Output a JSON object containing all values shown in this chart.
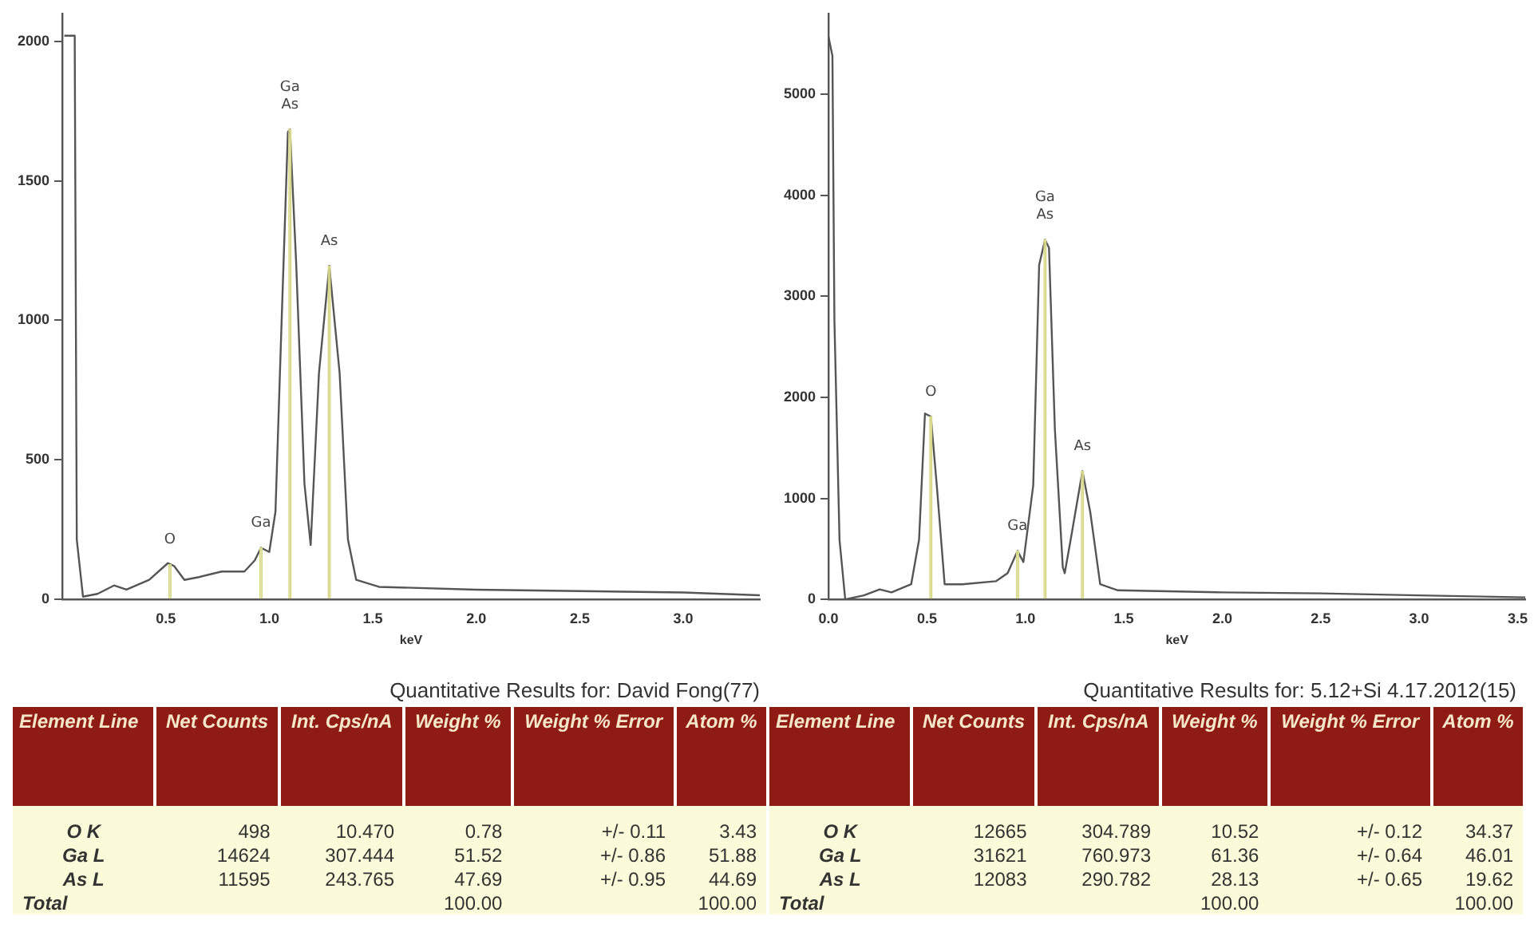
{
  "chart_data": [
    {
      "type": "line",
      "xlabel": "keV",
      "xlim": [
        0,
        3.37
      ],
      "ylim": [
        0,
        2100
      ],
      "xticks": [
        {
          "value": 0.5,
          "label": "0.5"
        },
        {
          "value": 1,
          "label": "1.0"
        },
        {
          "value": 1.5,
          "label": "1.5"
        },
        {
          "value": 2,
          "label": "2.0"
        },
        {
          "value": 2.5,
          "label": "2.5"
        },
        {
          "value": 3,
          "label": "3.0"
        }
      ],
      "yticks": [
        0,
        500,
        1000,
        1500,
        2000
      ],
      "grid": false,
      "legend": false,
      "marker": "none",
      "line_style": "solid",
      "series": [
        {
          "color": "#555555",
          "x": [
            0.01,
            0.06,
            0.07,
            0.1,
            0.17,
            0.25,
            0.31,
            0.42,
            0.51,
            0.54,
            0.59,
            0.66,
            0.77,
            0.88,
            0.93,
            0.96,
            1.0,
            1.03,
            1.06,
            1.09,
            1.1,
            1.13,
            1.17,
            1.2,
            1.24,
            1.29,
            1.34,
            1.38,
            1.42,
            1.53,
            2.0,
            2.5,
            3.0,
            3.37
          ],
          "values": [
            2020,
            2020,
            215,
            10,
            20,
            50,
            35,
            70,
            130,
            120,
            70,
            80,
            100,
            100,
            140,
            185,
            170,
            315,
            1005,
            1675,
            1685,
            1205,
            415,
            195,
            810,
            1195,
            810,
            215,
            70,
            45,
            35,
            30,
            25,
            15
          ]
        },
        {
          "type": "bar",
          "color": "#d9d98c",
          "x": [
            0.52,
            0.96,
            1.1,
            1.29
          ],
          "values": [
            125,
            185,
            1685,
            1195
          ]
        }
      ],
      "annotations": [
        {
          "text": "O",
          "x": 0.52,
          "y": 125
        },
        {
          "text": "Ga",
          "x": 0.96,
          "y": 185
        },
        {
          "text": "Ga\nAs",
          "x": 1.1,
          "y": 1685
        },
        {
          "text": "As",
          "x": 1.29,
          "y": 1195
        }
      ]
    },
    {
      "type": "line",
      "xlabel": "keV",
      "xlim": [
        0,
        3.54
      ],
      "ylim": [
        0,
        5800
      ],
      "xticks": [
        {
          "value": 0,
          "label": "0.0"
        },
        {
          "value": 0.5,
          "label": "0.5"
        },
        {
          "value": 1,
          "label": "1.0"
        },
        {
          "value": 1.5,
          "label": "1.5"
        },
        {
          "value": 2,
          "label": "2.0"
        },
        {
          "value": 2.5,
          "label": "2.5"
        },
        {
          "value": 3,
          "label": "3.0"
        },
        {
          "value": 3.5,
          "label": "3.5"
        }
      ],
      "yticks": [
        0,
        1000,
        2000,
        3000,
        4000,
        5000
      ],
      "grid": false,
      "legend": false,
      "marker": "none",
      "line_style": "solid",
      "series": [
        {
          "color": "#555555",
          "x": [
            0,
            0.02,
            0.03,
            0.056,
            0.085,
            0.18,
            0.26,
            0.32,
            0.42,
            0.46,
            0.49,
            0.52,
            0.55,
            0.59,
            0.68,
            0.85,
            0.91,
            0.96,
            0.99,
            1.04,
            1.07,
            1.1,
            1.12,
            1.15,
            1.19,
            1.2,
            1.23,
            1.29,
            1.33,
            1.38,
            1.47,
            2.0,
            2.5,
            3.0,
            3.54
          ],
          "values": [
            5570,
            5380,
            2770,
            590,
            0,
            40,
            100,
            70,
            150,
            590,
            1840,
            1810,
            1130,
            150,
            150,
            180,
            260,
            480,
            370,
            1130,
            3310,
            3560,
            3480,
            1680,
            320,
            260,
            590,
            1270,
            860,
            150,
            90,
            70,
            60,
            40,
            20
          ]
        },
        {
          "type": "bar",
          "color": "#d9d98c",
          "x": [
            0.52,
            0.96,
            1.1,
            1.29
          ],
          "values": [
            1810,
            480,
            3560,
            1270
          ]
        }
      ],
      "annotations": [
        {
          "text": "O",
          "x": 0.52,
          "y": 1810
        },
        {
          "text": "Ga",
          "x": 0.96,
          "y": 480
        },
        {
          "text": "Ga\nAs",
          "x": 1.1,
          "y": 3560
        },
        {
          "text": "As",
          "x": 1.29,
          "y": 1270
        }
      ]
    },
    {
      "type": "other",
      "title": "Quantitative Results for: David Fong(77)",
      "categories": [
        "Element Line",
        "Net Counts",
        "Int. Cps/nA",
        "Weight %",
        "Weight % Error",
        "Atom %"
      ],
      "y_categories": [
        "O K",
        "Ga L",
        "As L",
        "Total"
      ],
      "cell_labels": [
        [
          "498",
          "10.470",
          "0.78",
          "+/- 0.11",
          "3.43"
        ],
        [
          "14624",
          "307.444",
          "51.52",
          "+/- 0.86",
          "51.88"
        ],
        [
          "11595",
          "243.765",
          "47.69",
          "+/- 0.95",
          "44.69"
        ],
        [
          null,
          null,
          "100.00",
          null,
          "100.00"
        ]
      ]
    },
    {
      "type": "other",
      "title": "Quantitative Results for: 5.12+Si 4.17.2012(15)",
      "categories": [
        "Element Line",
        "Net Counts",
        "Int. Cps/nA",
        "Weight %",
        "Weight % Error",
        "Atom %"
      ],
      "y_categories": [
        "O K",
        "Ga L",
        "As L",
        "Total"
      ],
      "cell_labels": [
        [
          "12665",
          "304.789",
          "10.52",
          "+/- 0.12",
          "34.37"
        ],
        [
          "31621",
          "760.973",
          "61.36",
          "+/- 0.64",
          "46.01"
        ],
        [
          "12083",
          "290.782",
          "28.13",
          "+/- 0.65",
          "19.62"
        ],
        [
          null,
          null,
          "100.00",
          null,
          "100.00"
        ]
      ]
    }
  ]
}
